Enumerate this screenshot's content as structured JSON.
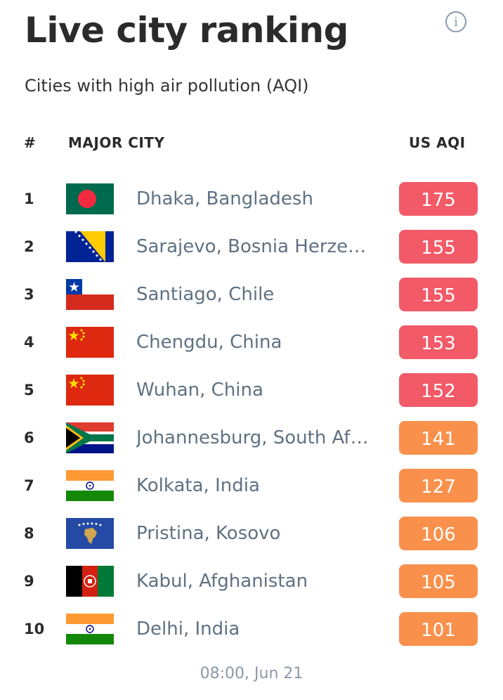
{
  "header": {
    "title": "Live city ranking",
    "subtitle": "Cities with high air pollution (AQI)",
    "info_icon": "info-icon",
    "info_symbol": "i"
  },
  "columns": {
    "rank": "#",
    "city": "MAJOR CITY",
    "aqi": "US AQI"
  },
  "colors": {
    "unhealthy": "#f25a68",
    "sensitive": "#f9914c",
    "city_text": "#5f7182"
  },
  "rows": [
    {
      "rank": "1",
      "city": "Dhaka, Bangladesh",
      "aqi": "175",
      "flag": "bangladesh-flag",
      "level": "unhealthy"
    },
    {
      "rank": "2",
      "city": "Sarajevo, Bosnia Herzeg…",
      "aqi": "155",
      "flag": "bosnia-flag",
      "level": "unhealthy"
    },
    {
      "rank": "3",
      "city": "Santiago, Chile",
      "aqi": "155",
      "flag": "chile-flag",
      "level": "unhealthy"
    },
    {
      "rank": "4",
      "city": "Chengdu, China",
      "aqi": "153",
      "flag": "china-flag",
      "level": "unhealthy"
    },
    {
      "rank": "5",
      "city": "Wuhan, China",
      "aqi": "152",
      "flag": "china-flag",
      "level": "unhealthy"
    },
    {
      "rank": "6",
      "city": "Johannesburg, South Af…",
      "aqi": "141",
      "flag": "south-africa-flag",
      "level": "sensitive"
    },
    {
      "rank": "7",
      "city": "Kolkata, India",
      "aqi": "127",
      "flag": "india-flag",
      "level": "sensitive"
    },
    {
      "rank": "8",
      "city": "Pristina, Kosovo",
      "aqi": "106",
      "flag": "kosovo-flag",
      "level": "sensitive"
    },
    {
      "rank": "9",
      "city": "Kabul, Afghanistan",
      "aqi": "105",
      "flag": "afghanistan-flag",
      "level": "sensitive"
    },
    {
      "rank": "10",
      "city": "Delhi, India",
      "aqi": "101",
      "flag": "india-flag",
      "level": "sensitive"
    }
  ],
  "footer": {
    "timestamp": "08:00, Jun 21"
  }
}
